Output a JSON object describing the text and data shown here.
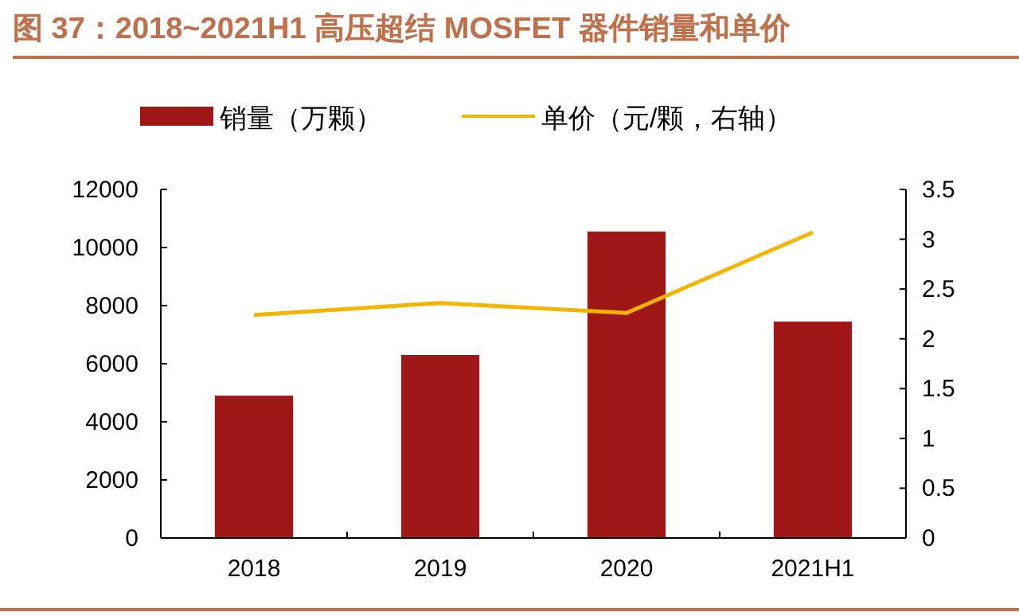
{
  "chart_data": {
    "type": "bar",
    "title": "图 37：2018~2021H1 高压超结 MOSFET 器件销量和单价",
    "categories": [
      "2018",
      "2019",
      "2020",
      "2021H1"
    ],
    "series": [
      {
        "name": "销量（万颗）",
        "color": "#a01717",
        "values": [
          4900,
          6300,
          10550,
          7450
        ]
      },
      {
        "name": "单价（元/颗，右轴）",
        "type": "line",
        "axis": "y2",
        "color": "#f5b400",
        "values": [
          2.24,
          2.36,
          2.26,
          3.07
        ]
      }
    ],
    "ylim": [
      0,
      12000
    ],
    "yticks": [
      0,
      2000,
      4000,
      6000,
      8000,
      10000,
      12000
    ],
    "y2lim": [
      0,
      3.5
    ],
    "y2ticks": [
      0,
      0.5,
      1,
      1.5,
      2,
      2.5,
      3,
      3.5
    ],
    "legend": "top",
    "grid": false
  }
}
